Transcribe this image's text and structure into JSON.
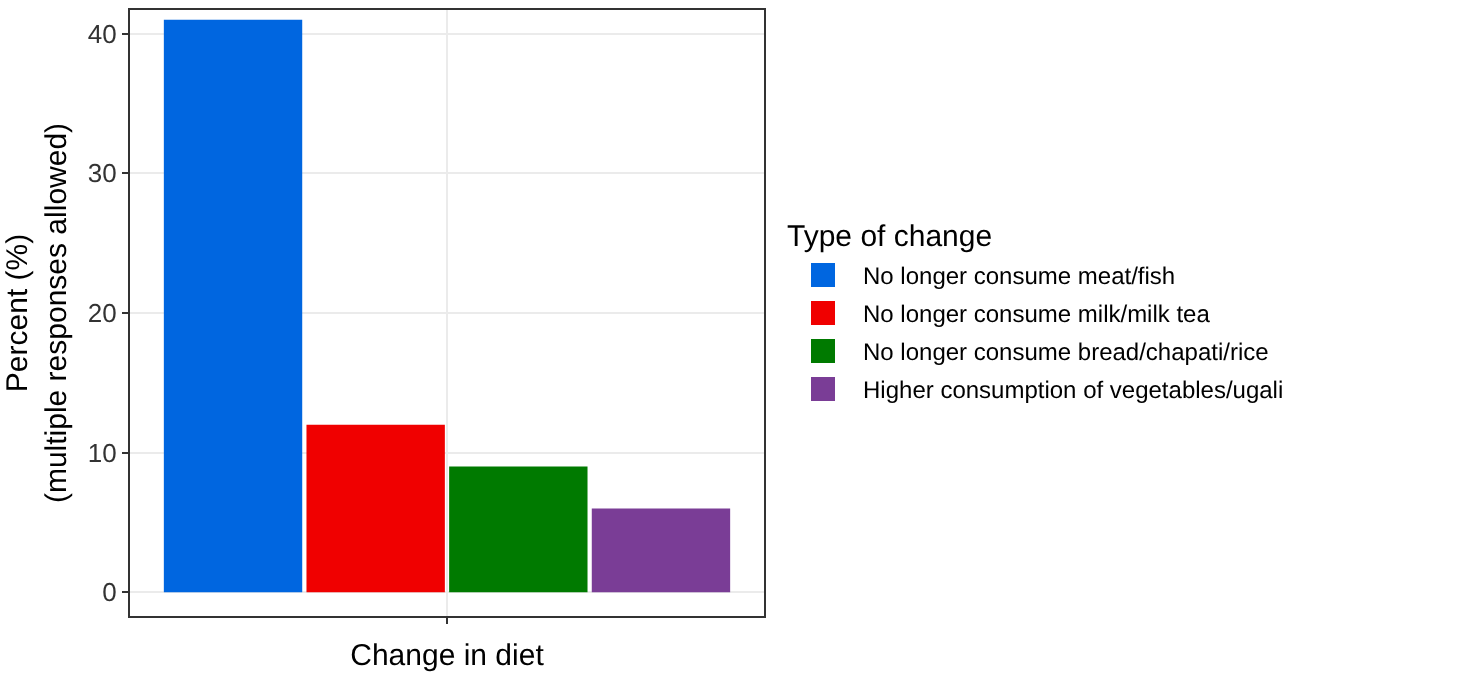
{
  "chart_data": {
    "type": "bar",
    "xlabel": "Change in diet",
    "ylabel": "Percent (%)\n(multiple responses allowed)",
    "legend_title": "Type of change",
    "categories": [
      null
    ],
    "series": [
      {
        "name": "No longer consume meat/fish",
        "color": "#0066e0",
        "values": [
          41
        ]
      },
      {
        "name": "No longer consume milk/milk tea",
        "color": "#f00000",
        "values": [
          12
        ]
      },
      {
        "name": "No longer consume bread/chapati/rice",
        "color": "#007a00",
        "values": [
          9
        ]
      },
      {
        "name": "Higher consumption of vegetables/ugali",
        "color": "#7a3d96",
        "values": [
          6
        ]
      }
    ],
    "ylim": [
      -1.7,
      41.7
    ],
    "yticks": [
      0,
      10,
      20,
      30,
      40
    ],
    "grid": true,
    "legend": "right"
  }
}
